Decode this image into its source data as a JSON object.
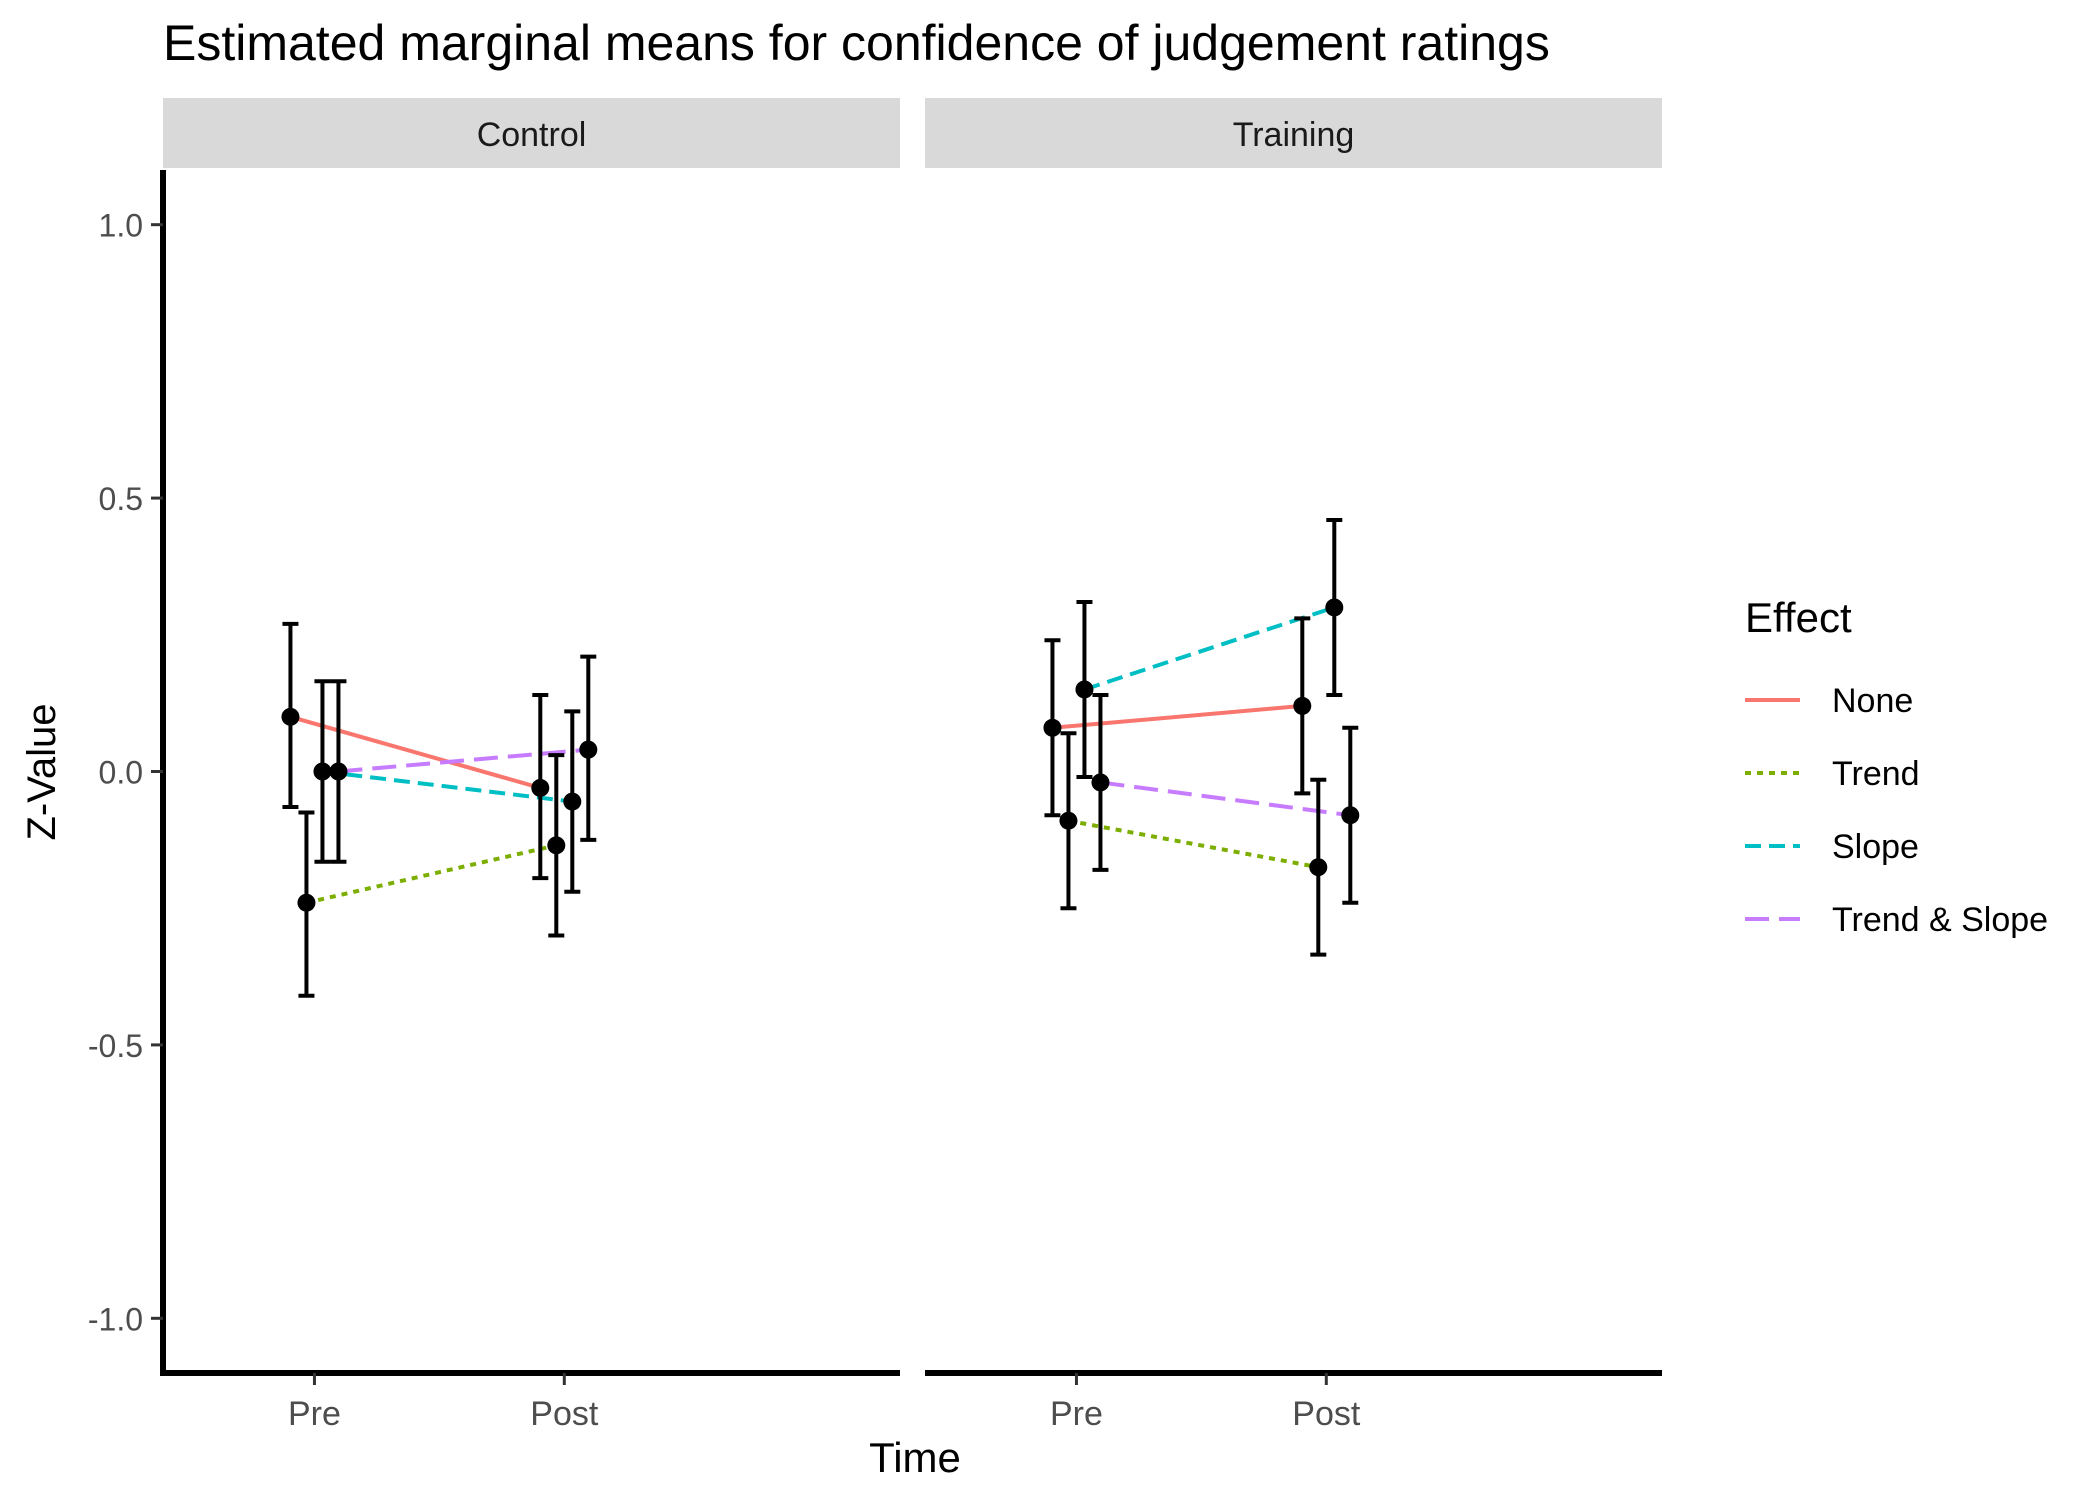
{
  "chart_data": {
    "type": "line",
    "title": "Estimated marginal means for confidence of judgement ratings",
    "xlabel": "Time",
    "ylabel": "Z-Value",
    "ylim": [
      -1.1,
      1.1
    ],
    "yticks": [
      1.0,
      0.5,
      0.0,
      -0.5,
      -1.0
    ],
    "ytick_labels": [
      "1.0",
      "0.5",
      "0.0",
      "-0.5",
      "-1.0"
    ],
    "categories": [
      "Pre",
      "Post"
    ],
    "grid": false,
    "facets": [
      "Control",
      "Training"
    ],
    "legend": {
      "title": "Effect",
      "placement": "right",
      "entries": [
        {
          "name": "None",
          "color": "#F8766D",
          "dash": "solid"
        },
        {
          "name": "Trend",
          "color": "#7CAE00",
          "dash": "dotted"
        },
        {
          "name": "Slope",
          "color": "#00BFC4",
          "dash": "dashed"
        },
        {
          "name": "Trend & Slope",
          "color": "#C77CFF",
          "dash": "longdash"
        }
      ]
    },
    "point_color": "#000000",
    "series": [
      {
        "name": "None",
        "facet": "Control",
        "values": [
          0.1,
          -0.03
        ],
        "lower": [
          -0.065,
          -0.195
        ],
        "upper": [
          0.27,
          0.14
        ]
      },
      {
        "name": "Trend",
        "facet": "Control",
        "values": [
          -0.24,
          -0.135
        ],
        "lower": [
          -0.41,
          -0.3
        ],
        "upper": [
          -0.075,
          0.03
        ]
      },
      {
        "name": "Slope",
        "facet": "Control",
        "values": [
          0.0,
          -0.055
        ],
        "lower": [
          -0.165,
          -0.22
        ],
        "upper": [
          0.165,
          0.11
        ]
      },
      {
        "name": "Trend & Slope",
        "facet": "Control",
        "values": [
          0.0,
          0.04
        ],
        "lower": [
          -0.165,
          -0.125
        ],
        "upper": [
          0.165,
          0.21
        ]
      },
      {
        "name": "None",
        "facet": "Training",
        "values": [
          0.08,
          0.12
        ],
        "lower": [
          -0.08,
          -0.04
        ],
        "upper": [
          0.24,
          0.28
        ]
      },
      {
        "name": "Trend",
        "facet": "Training",
        "values": [
          -0.09,
          -0.175
        ],
        "lower": [
          -0.25,
          -0.335
        ],
        "upper": [
          0.07,
          -0.015
        ]
      },
      {
        "name": "Slope",
        "facet": "Training",
        "values": [
          0.15,
          0.3
        ],
        "lower": [
          -0.01,
          0.14
        ],
        "upper": [
          0.31,
          0.46
        ]
      },
      {
        "name": "Trend & Slope",
        "facet": "Training",
        "values": [
          -0.02,
          -0.08
        ],
        "lower": [
          -0.18,
          -0.24
        ],
        "upper": [
          0.14,
          0.08
        ]
      }
    ]
  }
}
